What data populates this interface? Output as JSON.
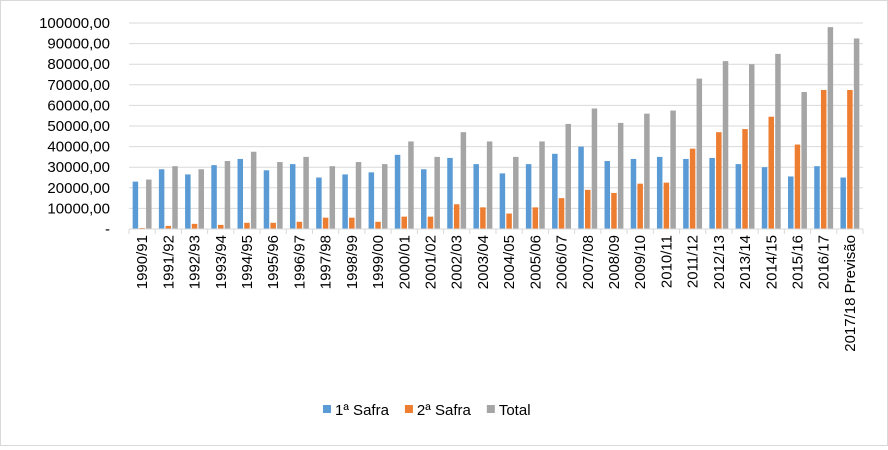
{
  "chart_data": {
    "type": "bar",
    "categories": [
      "1990/91",
      "1991/92",
      "1992/93",
      "1993/94",
      "1994/95",
      "1995/96",
      "1996/97",
      "1997/98",
      "1998/99",
      "1999/00",
      "2000/01",
      "2001/02",
      "2002/03",
      "2003/04",
      "2004/05",
      "2005/06",
      "2006/07",
      "2007/08",
      "2008/09",
      "2009/10",
      "2010/11",
      "2011/12",
      "2012/13",
      "2013/14",
      "2014/15",
      "2015/16",
      "2016/17",
      "2017/18 Previsão"
    ],
    "series": [
      {
        "name": "1ª Safra",
        "color": "#5b9bd5",
        "values": [
          23000,
          29000,
          26500,
          31000,
          34000,
          28500,
          31500,
          25000,
          26500,
          27500,
          36000,
          29000,
          34500,
          31500,
          27000,
          31500,
          36500,
          40000,
          33000,
          34000,
          35000,
          34000,
          34500,
          31500,
          30000,
          25500,
          30500,
          25000
        ]
      },
      {
        "name": "2ª Safra",
        "color": "#ed7d31",
        "values": [
          500,
          1500,
          2500,
          2000,
          3000,
          3000,
          3500,
          5500,
          5500,
          3500,
          6000,
          6000,
          12000,
          10500,
          7500,
          10500,
          15000,
          19000,
          17500,
          22000,
          22500,
          39000,
          47000,
          48500,
          54500,
          41000,
          67500,
          67500
        ]
      },
      {
        "name": "Total",
        "color": "#a5a5a5",
        "values": [
          24000,
          30500,
          29000,
          33000,
          37500,
          32500,
          35000,
          30500,
          32500,
          31500,
          42500,
          35000,
          47000,
          42500,
          35000,
          42500,
          51000,
          58500,
          51500,
          56000,
          57500,
          73000,
          81500,
          80000,
          85000,
          66500,
          98000,
          92500
        ]
      }
    ],
    "y_tick_labels": [
      "-",
      "10000,00",
      "20000,00",
      "30000,00",
      "40000,00",
      "50000,00",
      "60000,00",
      "70000,00",
      "80000,00",
      "90000,00",
      "100000,00"
    ],
    "ylim": [
      0,
      100000
    ],
    "grid": true,
    "legend_position": "bottom"
  }
}
